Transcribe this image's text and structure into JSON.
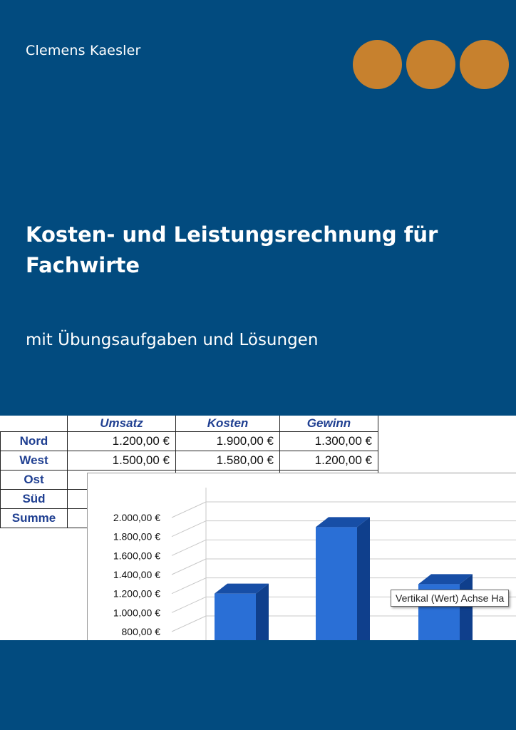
{
  "cover": {
    "author": "Clemens Kaesler",
    "title_line1": "Kosten- und Leistungsrechnung für",
    "title_line2": "Fachwirte",
    "subtitle": "mit Übungsaufgaben und Lösungen",
    "accent_color": "#c7812e",
    "background_color": "#024b7f"
  },
  "table": {
    "headers": [
      "Umsatz",
      "Kosten",
      "Gewinn"
    ],
    "rows": [
      {
        "label": "Nord",
        "values": [
          "1.200,00 €",
          "1.900,00 €",
          "1.300,00 €"
        ]
      },
      {
        "label": "West",
        "values": [
          "1.500,00 €",
          "1.580,00 €",
          "1.200,00 €"
        ]
      },
      {
        "label": "Ost",
        "values": [
          "",
          "",
          ""
        ]
      },
      {
        "label": "Süd",
        "values": [
          "",
          "",
          ""
        ]
      },
      {
        "label": "Summe",
        "values": [
          "",
          "",
          ""
        ]
      }
    ]
  },
  "chart_data": {
    "type": "bar",
    "categories": [
      "",
      "",
      ""
    ],
    "values": [
      1200,
      1900,
      1300
    ],
    "ylim": [
      800,
      2000
    ],
    "yticks": [
      "2.000,00 €",
      "1.800,00 €",
      "1.600,00 €",
      "1.400,00 €",
      "1.200,00 €",
      "1.000,00 €",
      "800,00 €"
    ],
    "bar_color": "#2a6fd6",
    "grid": true,
    "tooltip": "Vertikal (Wert) Achse Ha"
  }
}
